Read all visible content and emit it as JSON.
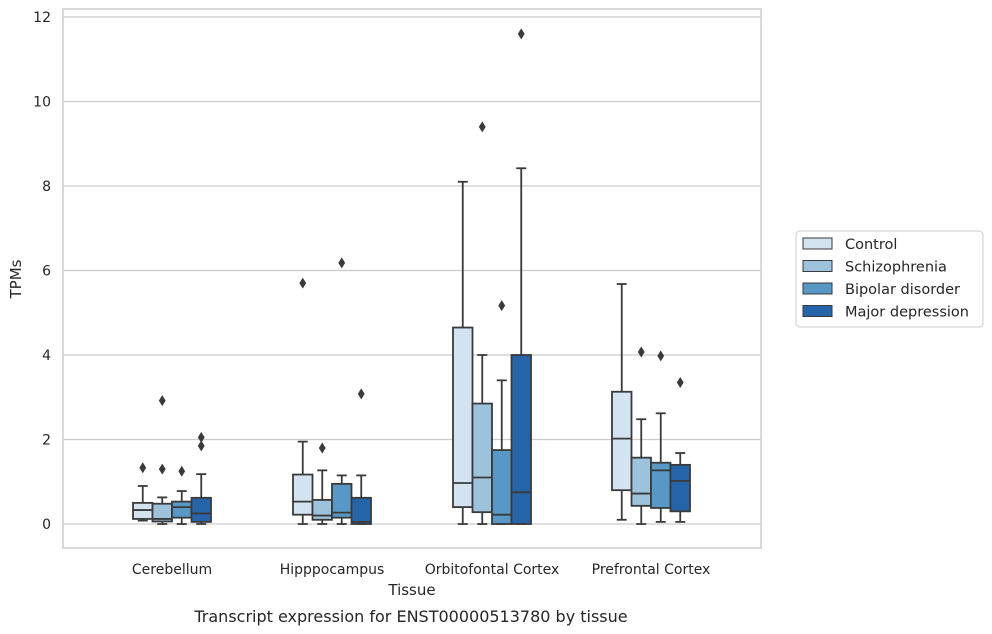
{
  "caption": "Transcript expression for ENST00000513780 by tissue",
  "chart_data": {
    "type": "box",
    "xlabel": "Tissue",
    "ylabel": "TPMs",
    "ylim": [
      -0.55,
      12.2
    ],
    "yticks": [
      0,
      2,
      4,
      6,
      8,
      10,
      12
    ],
    "grid": "horizontal",
    "legend_position": "right",
    "categories": [
      "Cerebellum",
      "Hipppocampus",
      "Orbitofontal Cortex",
      "Prefrontal Cortex"
    ],
    "series": [
      {
        "name": "Control",
        "color": "#d4e3f1",
        "boxes": [
          {
            "whisker_low": 0.08,
            "q1": 0.12,
            "median": 0.33,
            "q3": 0.5,
            "whisker_high": 0.9,
            "outliers": [
              1.33
            ]
          },
          {
            "whisker_low": 0.0,
            "q1": 0.22,
            "median": 0.53,
            "q3": 1.17,
            "whisker_high": 1.95,
            "outliers": [
              5.7
            ]
          },
          {
            "whisker_low": 0.0,
            "q1": 0.4,
            "median": 0.97,
            "q3": 4.65,
            "whisker_high": 8.1,
            "outliers": []
          },
          {
            "whisker_low": 0.1,
            "q1": 0.8,
            "median": 2.02,
            "q3": 3.13,
            "whisker_high": 5.68,
            "outliers": []
          }
        ]
      },
      {
        "name": "Schizophrenia",
        "color": "#9dc2dc",
        "boxes": [
          {
            "whisker_low": 0.0,
            "q1": 0.06,
            "median": 0.12,
            "q3": 0.48,
            "whisker_high": 0.63,
            "outliers": [
              1.3,
              2.92
            ]
          },
          {
            "whisker_low": 0.0,
            "q1": 0.1,
            "median": 0.2,
            "q3": 0.57,
            "whisker_high": 1.27,
            "outliers": [
              1.8
            ]
          },
          {
            "whisker_low": 0.0,
            "q1": 0.28,
            "median": 1.1,
            "q3": 2.85,
            "whisker_high": 4.0,
            "outliers": [
              9.4
            ]
          },
          {
            "whisker_low": 0.0,
            "q1": 0.43,
            "median": 0.72,
            "q3": 1.57,
            "whisker_high": 2.48,
            "outliers": [
              4.07
            ]
          }
        ]
      },
      {
        "name": "Bipolar disorder",
        "color": "#5798c6",
        "boxes": [
          {
            "whisker_low": 0.0,
            "q1": 0.15,
            "median": 0.4,
            "q3": 0.53,
            "whisker_high": 0.78,
            "outliers": [
              1.25
            ]
          },
          {
            "whisker_low": 0.0,
            "q1": 0.15,
            "median": 0.27,
            "q3": 0.95,
            "whisker_high": 1.15,
            "outliers": [
              6.18
            ]
          },
          {
            "whisker_low": 0.0,
            "q1": 0.0,
            "median": 0.22,
            "q3": 1.75,
            "whisker_high": 3.4,
            "outliers": [
              5.17
            ]
          },
          {
            "whisker_low": 0.05,
            "q1": 0.38,
            "median": 1.27,
            "q3": 1.45,
            "whisker_high": 2.62,
            "outliers": [
              3.98
            ]
          }
        ]
      },
      {
        "name": "Major depression",
        "color": "#2664a9",
        "boxes": [
          {
            "whisker_low": 0.0,
            "q1": 0.05,
            "median": 0.25,
            "q3": 0.62,
            "whisker_high": 1.18,
            "outliers": [
              1.85,
              2.05
            ]
          },
          {
            "whisker_low": 0.0,
            "q1": 0.0,
            "median": 0.05,
            "q3": 0.62,
            "whisker_high": 1.15,
            "outliers": [
              3.08
            ]
          },
          {
            "whisker_low": 0.0,
            "q1": 0.0,
            "median": 0.75,
            "q3": 4.0,
            "whisker_high": 8.42,
            "outliers": [
              11.6
            ]
          },
          {
            "whisker_low": 0.05,
            "q1": 0.3,
            "median": 1.02,
            "q3": 1.4,
            "whisker_high": 1.68,
            "outliers": [
              3.35
            ]
          }
        ]
      }
    ]
  }
}
